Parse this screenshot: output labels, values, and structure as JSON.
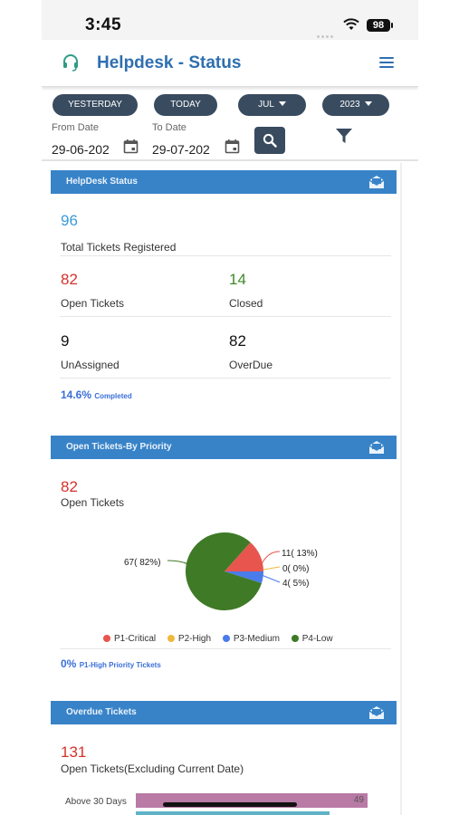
{
  "status_bar": {
    "time": "3:45",
    "battery": "98"
  },
  "header": {
    "title": "Helpdesk - Status"
  },
  "filters": {
    "yesterday": "YESTERDAY",
    "today": "TODAY",
    "month": "JUL",
    "year": "2023",
    "from_label": "From Date",
    "from_value": "29-06-202",
    "to_label": "To Date",
    "to_value": "29-07-202"
  },
  "status_card": {
    "title": "HelpDesk Status",
    "total_value": "96",
    "total_label": "Total Tickets Registered",
    "open_value": "82",
    "open_label": "Open Tickets",
    "closed_value": "14",
    "closed_label": "Closed",
    "unassigned_value": "9",
    "unassigned_label": "UnAssigned",
    "overdue_value": "82",
    "overdue_label": "OverDue",
    "completed_pct": "14.6%",
    "completed_label": "Completed"
  },
  "priority_card": {
    "title": "Open Tickets-By Priority",
    "open_value": "82",
    "open_label": "Open Tickets",
    "high_pct": "0%",
    "high_label": "P1-High Priority Tickets"
  },
  "overdue_card": {
    "title": "Overdue Tickets",
    "value": "131",
    "label": "Open Tickets(Excluding Current Date)",
    "bar_label": "Above 30 Days",
    "bar_value": "49"
  },
  "colors": {
    "critical": "#e8554e",
    "high": "#f0b83e",
    "medium": "#4a7bea",
    "low": "#3f7a26"
  },
  "chart_data": {
    "type": "pie",
    "categories": [
      "P1-Critical",
      "P2-High",
      "P3-Medium",
      "P4-Low"
    ],
    "values": [
      11,
      0,
      4,
      67
    ],
    "labels": [
      "11( 13%)",
      "0( 0%)",
      "4( 5%)",
      "67( 82%)"
    ],
    "legend": "bottom"
  }
}
